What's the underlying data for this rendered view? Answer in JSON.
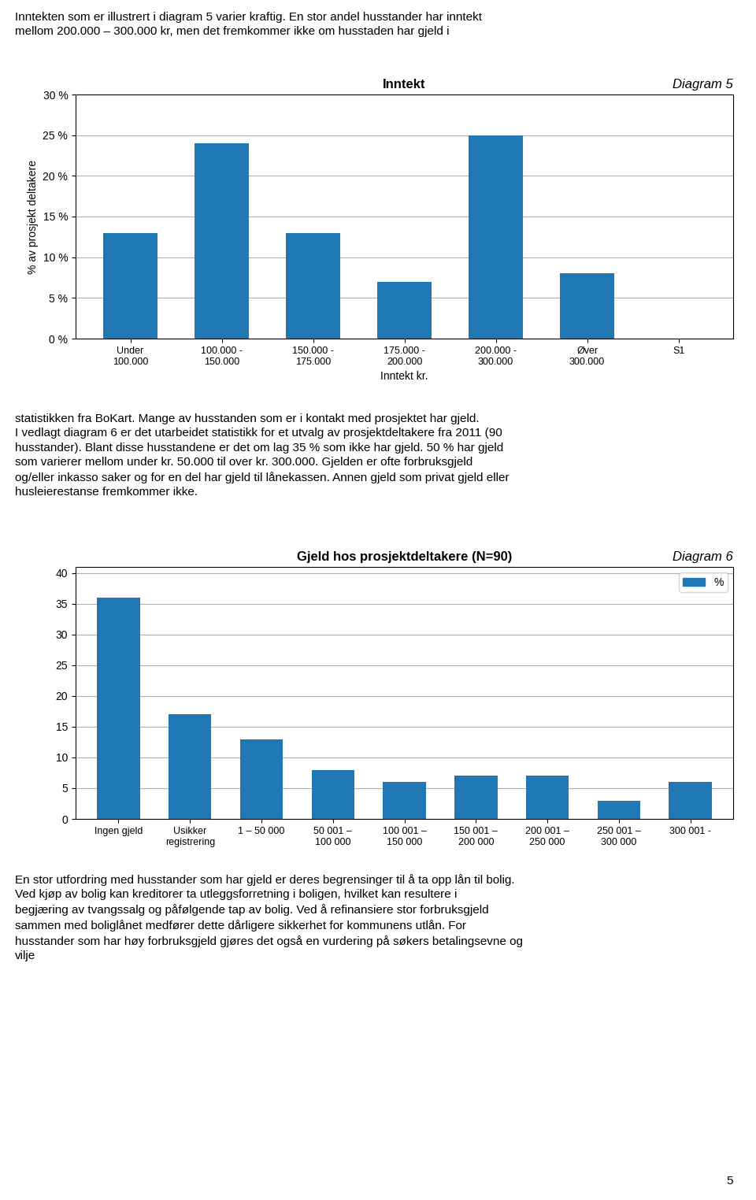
{
  "chart_data": [
    {
      "type": "bar",
      "title": "Inntekt",
      "subtitle": "Diagram 5",
      "categories": [
        "Under\n100.000",
        "100.000 -\n150.000",
        "150.000 -\n175.000",
        "175.000 -\n200.000",
        "200.000 -\n300.000",
        "Øver\n300.000",
        "S1"
      ],
      "values": [
        13,
        24,
        13,
        7,
        25,
        8,
        0
      ],
      "ylabel": "% av prosjekt deltakere",
      "xlabel": "Inntekt kr.",
      "ylim": [
        0,
        30
      ],
      "yticks": [
        {
          "value": 0,
          "label": "0 %"
        },
        {
          "value": 5,
          "label": "5 %"
        },
        {
          "value": 10,
          "label": "10 %"
        },
        {
          "value": 15,
          "label": "15 %"
        },
        {
          "value": 20,
          "label": "20 %"
        },
        {
          "value": 25,
          "label": "25 %"
        },
        {
          "value": 30,
          "label": "30 %"
        }
      ],
      "grid": true,
      "annotations": [
        "Inntekten som er illustrert i diagram 5 varier kraftig. En stor andel husstander har inntekt\nmellom 200.000 – 300.000 kr, men det fremkommer ikke om husstaden har gjeld i",
        "statistikken fra BoKart. Mange av husstanden som er i kontakt med prosjektet har gjeld.\nI vedlagt diagram 6 er det utarbeidet statistikk for et utvalg av prosjektdeltakere fra 2011 (90\nhusstander). Blant disse husstandene er det om lag 35 % som ikke har gjeld. 50 % har gjeld\nsom varierer mellom under kr. 50.000 til over kr. 300.000. Gjelden er ofte forbruksgjeld\nog/eller inkasso saker og for en del har gjeld til lånekassen. Annen gjeld som privat gjeld eller\nhusleierestanse fremkommer ikke."
      ]
    },
    {
      "type": "bar",
      "title": "Gjeld hos prosjektdeltakere (N=90)",
      "subtitle": "Diagram 6",
      "categories": [
        "Ingen gjeld",
        "Usikker\nregistrering",
        "1 – 50 000",
        "50 001 –\n100 000",
        "100 001 –\n150 000",
        "150 001 –\n200 000",
        "200 001 –\n250 000",
        "250 001 –\n300 000",
        "300 001 -"
      ],
      "series": [
        {
          "name": "%",
          "values": [
            36,
            17,
            13,
            8,
            6,
            7,
            7,
            3,
            6
          ]
        }
      ],
      "ylim": [
        0,
        41
      ],
      "yticks": [
        0,
        5,
        10,
        15,
        20,
        25,
        30,
        35,
        40
      ],
      "grid": true,
      "legend": "upper right",
      "annotations": [
        "En stor utfordring med husstander som har gjeld er deres begrensinger til å ta opp lån til bolig.\nVed kjøp av bolig kan kreditorer ta utleggsforretning i boligen, hvilket kan resultere i\nbegjæring av tvangssalg og påfølgende tap av bolig. Ved å refinansiere stor forbruksgjeld\nsammen med boliglånet medfører dette dårligere sikkerhet for kommunens utlån. For\nhusstander som har høy forbruksgjeld gjøres det også en vurdering på søkers betalingsevne og\nvilje",
        "5"
      ]
    }
  ]
}
